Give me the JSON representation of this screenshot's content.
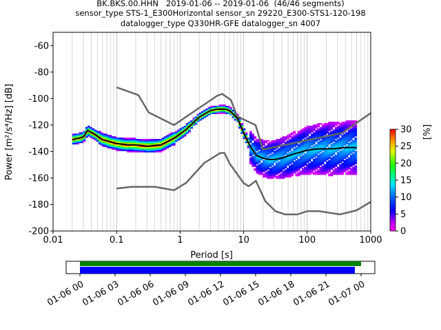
{
  "title": {
    "line1": "BK.BKS.00.HHN   2019-01-06 -- 2019-01-06  (46/46 segments)",
    "line2": "sensor_type STS-1_E300Horizontal sensor_sn 29220_E300-STS1-120-198",
    "line3": "datalogger_type Q330HR-GFE datalogger_sn 4007"
  },
  "chart_data": {
    "type": "heatmap",
    "xlabel": "Period [s]",
    "ylabel": "Power [m²/s⁴/Hz] [dB]",
    "xscale": "log",
    "xlim": [
      0.01,
      1000
    ],
    "ylim": [
      -200,
      -50
    ],
    "grid": "vertical",
    "xticks": [
      "0.01",
      "0.1",
      "1",
      "10",
      "100",
      "1000"
    ],
    "yticks": [
      "-200",
      "-180",
      "-160",
      "-140",
      "-120",
      "-100",
      "-80",
      "-60"
    ],
    "colorbar": {
      "label": "[%]",
      "range": [
        0,
        30
      ],
      "ticks": [
        "0",
        "5",
        "10",
        "15",
        "20",
        "25",
        "30"
      ]
    },
    "mean_curve": {
      "period": [
        0.02,
        0.025,
        0.03,
        0.035,
        0.045,
        0.06,
        0.1,
        0.15,
        0.2,
        0.3,
        0.5,
        0.8,
        1.2,
        2,
        3,
        4,
        5,
        6,
        8,
        10,
        13,
        16,
        20,
        25,
        30,
        40,
        60,
        100,
        150,
        250,
        400,
        600
      ],
      "power": [
        -131,
        -130,
        -129,
        -124,
        -127,
        -131,
        -134,
        -135,
        -135,
        -136,
        -135,
        -130,
        -124,
        -114,
        -109,
        -108,
        -108,
        -109,
        -115,
        -126,
        -137,
        -143,
        -145,
        -146,
        -146,
        -145,
        -142,
        -139,
        -138,
        -138,
        -137,
        -137
      ]
    },
    "nhnm": {
      "period": [
        0.1,
        0.22,
        0.32,
        0.8,
        3.8,
        4.6,
        6.3,
        7.9,
        15.4,
        20,
        354.8,
        1000
      ],
      "power": [
        -91.5,
        -97.4,
        -110.5,
        -120,
        -98,
        -96.5,
        -101,
        -113.5,
        -120,
        -138.5,
        -126,
        -111
      ]
    },
    "nlnm": {
      "period": [
        0.1,
        0.17,
        0.4,
        0.8,
        1.24,
        2.4,
        4.3,
        5,
        6,
        10,
        12,
        15.6,
        21.9,
        31.6,
        45,
        70,
        101,
        154,
        328,
        600,
        1000
      ],
      "power": [
        -168,
        -166.7,
        -166.7,
        -169.2,
        -163.7,
        -148.6,
        -141.1,
        -141.1,
        -149,
        -163.8,
        -166.2,
        -162.1,
        -177.5,
        -185,
        -187.5,
        -187.5,
        -185,
        -185,
        -187.5,
        -184.4,
        -178
      ]
    },
    "time_axis": {
      "ticks": [
        "01-06 00",
        "01-06 03",
        "01-06 06",
        "01-06 09",
        "01-06 12",
        "01-06 15",
        "01-06 18",
        "01-06 21",
        "01-07 00"
      ],
      "data_coverage_color": "#008000",
      "psd_coverage_color": "#0000ff"
    }
  }
}
